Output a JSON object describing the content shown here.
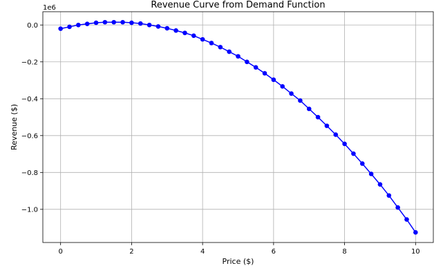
{
  "chart_data": {
    "type": "line",
    "title": "Revenue Curve from Demand Function",
    "xlabel": "Price ($)",
    "ylabel": "Revenue ($)",
    "y_offset_label": "1e6",
    "y_multiplier": 1000000,
    "xlim": [
      -0.5,
      10.5
    ],
    "ylim": [
      -1.18,
      0.072
    ],
    "grid": true,
    "x_ticks": [
      0,
      2,
      4,
      6,
      8,
      10
    ],
    "x_tick_labels": [
      "0",
      "2",
      "4",
      "6",
      "8",
      "10"
    ],
    "y_ticks": [
      0.0,
      -0.2,
      -0.4,
      -0.6,
      -0.8,
      -1.0
    ],
    "y_tick_labels": [
      "0.0",
      "−0.2",
      "−0.4",
      "−0.6",
      "−0.8",
      "−1.0"
    ],
    "series": [
      {
        "color": "#0000ff",
        "marker": "circle",
        "x": [
          0,
          0.25,
          0.5,
          0.75,
          1,
          1.25,
          1.5,
          1.75,
          2,
          2.25,
          2.5,
          2.75,
          3,
          3.25,
          3.5,
          3.75,
          4,
          4.25,
          4.5,
          4.75,
          5,
          5.25,
          5.5,
          5.75,
          6,
          6.25,
          6.5,
          6.75,
          7,
          7.25,
          7.5,
          7.75,
          8,
          8.25,
          8.5,
          8.75,
          9,
          9.25,
          9.5,
          9.75,
          10
        ],
        "y": [
          -0.02,
          -0.01,
          0.0,
          0.006,
          0.012,
          0.015,
          0.015,
          0.015,
          0.012,
          0.008,
          0.0,
          -0.008,
          -0.018,
          -0.03,
          -0.043,
          -0.058,
          -0.078,
          -0.098,
          -0.12,
          -0.145,
          -0.17,
          -0.2,
          -0.23,
          -0.262,
          -0.297,
          -0.333,
          -0.372,
          -0.41,
          -0.455,
          -0.5,
          -0.547,
          -0.595,
          -0.645,
          -0.698,
          -0.752,
          -0.808,
          -0.865,
          -0.925,
          -0.99,
          -1.055,
          -1.125
        ]
      }
    ]
  }
}
